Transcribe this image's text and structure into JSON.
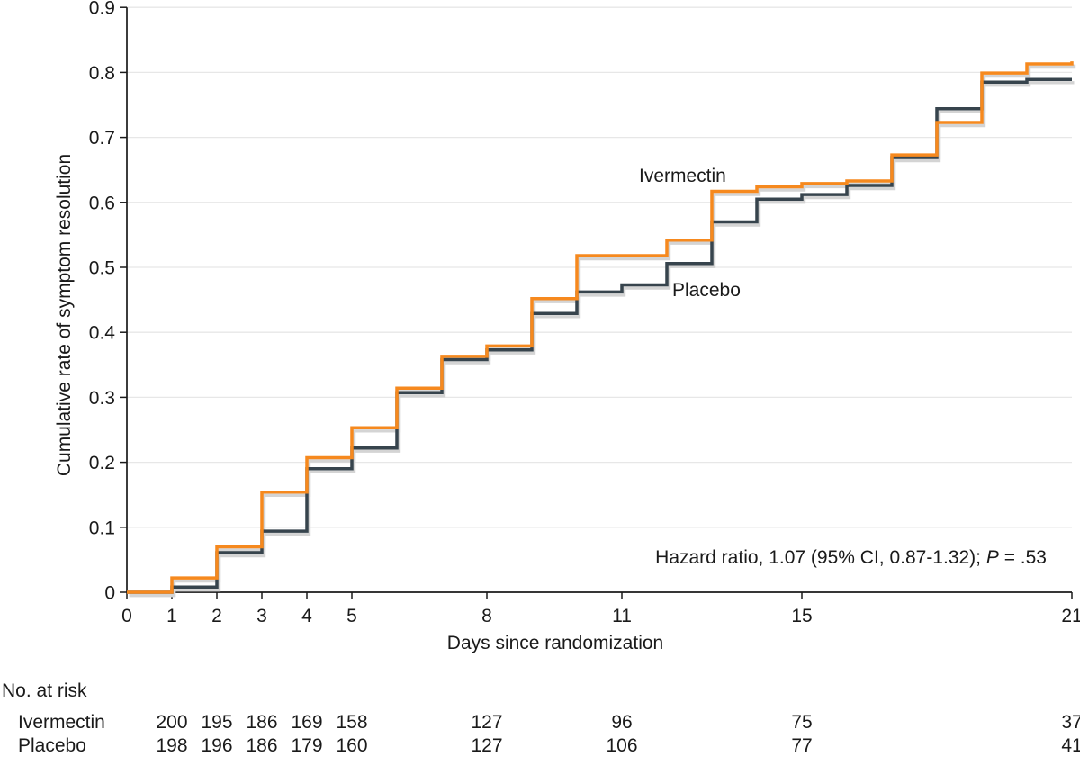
{
  "figure": {
    "ylabel": "Cumulative rate of symptom resolution",
    "xlabel": "Days since randomization",
    "series_labels": {
      "ivermectin": "Ivermectin",
      "placebo": "Placebo"
    },
    "annotation_parts": {
      "before_p": "Hazard ratio, 1.07 (95% CI, 0.87-1.32); ",
      "p": "P",
      "after_p": " = .53"
    }
  },
  "chart_data": {
    "type": "line",
    "subtype": "step",
    "title": "",
    "xlabel": "Days since randomization",
    "ylabel": "Cumulative rate of symptom resolution",
    "xlim": [
      0,
      21
    ],
    "ylim": [
      0,
      0.9
    ],
    "x_ticks": [
      0,
      1,
      2,
      3,
      4,
      5,
      8,
      11,
      15,
      21
    ],
    "y_ticks": [
      0,
      0.1,
      0.2,
      0.3,
      0.4,
      0.5,
      0.6,
      0.7,
      0.8,
      0.9
    ],
    "grid": "horizontal",
    "legend_position": "inline-labels",
    "annotation": "Hazard ratio, 1.07 (95% CI, 0.87-1.32); P = .53",
    "series": [
      {
        "name": "Ivermectin",
        "color": "#F6891E",
        "points": [
          [
            0,
            0
          ],
          [
            1,
            0.022
          ],
          [
            2,
            0.07
          ],
          [
            3,
            0.154
          ],
          [
            4,
            0.207
          ],
          [
            5,
            0.253
          ],
          [
            6,
            0.314
          ],
          [
            7,
            0.363
          ],
          [
            8,
            0.379
          ],
          [
            9,
            0.452
          ],
          [
            10,
            0.518
          ],
          [
            12,
            0.542
          ],
          [
            13,
            0.617
          ],
          [
            14,
            0.624
          ],
          [
            15,
            0.629
          ],
          [
            16,
            0.633
          ],
          [
            17,
            0.673
          ],
          [
            18,
            0.723
          ],
          [
            19,
            0.799
          ],
          [
            20,
            0.813
          ],
          [
            21,
            0.817
          ]
        ]
      },
      {
        "name": "Placebo",
        "color": "#37444D",
        "points": [
          [
            0,
            0
          ],
          [
            1,
            0.008
          ],
          [
            2,
            0.061
          ],
          [
            3,
            0.094
          ],
          [
            4,
            0.19
          ],
          [
            5,
            0.222
          ],
          [
            6,
            0.307
          ],
          [
            7,
            0.358
          ],
          [
            8,
            0.373
          ],
          [
            9,
            0.429
          ],
          [
            10,
            0.462
          ],
          [
            11,
            0.473
          ],
          [
            12,
            0.506
          ],
          [
            13,
            0.57
          ],
          [
            14,
            0.605
          ],
          [
            15,
            0.612
          ],
          [
            16,
            0.626
          ],
          [
            17,
            0.669
          ],
          [
            18,
            0.744
          ],
          [
            19,
            0.785
          ],
          [
            20,
            0.789
          ]
        ]
      }
    ]
  },
  "risk_table": {
    "title": "No. at risk",
    "days": [
      1,
      2,
      3,
      4,
      5,
      8,
      11,
      15,
      21
    ],
    "rows": [
      {
        "label": "Ivermectin",
        "values": [
          200,
          195,
          186,
          169,
          158,
          127,
          96,
          75,
          37
        ]
      },
      {
        "label": "Placebo",
        "values": [
          198,
          196,
          186,
          179,
          160,
          127,
          106,
          77,
          41
        ]
      }
    ]
  },
  "colors": {
    "ivermectin": "#F6891E",
    "placebo": "#37444D",
    "grid": "#E7E7E7",
    "axis": "#1A1A1A",
    "text": "#1A1A1A",
    "shadow": "#D4D4D4"
  }
}
